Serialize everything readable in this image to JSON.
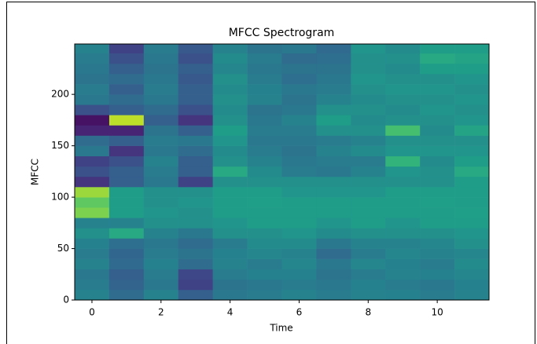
{
  "chart_data": {
    "type": "heatmap",
    "title": "MFCC Spectrogram",
    "x_label": "Time",
    "y_label": "MFCC",
    "colormap": "viridis",
    "x": [
      0,
      1,
      2,
      3,
      4,
      5,
      6,
      7,
      8,
      9,
      10,
      11
    ],
    "ybins": [
      0,
      10,
      20,
      30,
      40,
      50,
      60,
      70,
      80,
      90,
      100,
      110,
      120,
      130,
      140,
      150,
      160,
      170,
      180,
      190,
      200,
      210,
      220,
      230,
      240,
      249
    ],
    "values": [
      [
        0.45,
        0.42,
        0.4,
        0.45,
        0.42,
        0.44,
        0.5,
        0.45,
        0.8,
        0.75,
        0.85,
        0.15,
        0.25,
        0.2,
        0.4,
        0.35,
        0.1,
        0.05,
        0.25,
        0.4,
        0.42,
        0.38,
        0.4,
        0.42,
        0.45
      ],
      [
        0.35,
        0.32,
        0.3,
        0.34,
        0.33,
        0.36,
        0.6,
        0.45,
        0.55,
        0.55,
        0.55,
        0.3,
        0.3,
        0.25,
        0.15,
        0.3,
        0.1,
        0.9,
        0.3,
        0.35,
        0.3,
        0.35,
        0.3,
        0.25,
        0.2
      ],
      [
        0.45,
        0.4,
        0.42,
        0.44,
        0.42,
        0.4,
        0.45,
        0.5,
        0.52,
        0.5,
        0.5,
        0.4,
        0.42,
        0.45,
        0.4,
        0.42,
        0.38,
        0.3,
        0.35,
        0.4,
        0.42,
        0.4,
        0.38,
        0.4,
        0.42
      ],
      [
        0.3,
        0.2,
        0.22,
        0.35,
        0.38,
        0.35,
        0.4,
        0.5,
        0.5,
        0.52,
        0.5,
        0.2,
        0.3,
        0.3,
        0.35,
        0.4,
        0.3,
        0.15,
        0.25,
        0.3,
        0.3,
        0.28,
        0.3,
        0.25,
        0.28
      ],
      [
        0.4,
        0.38,
        0.42,
        0.45,
        0.44,
        0.42,
        0.5,
        0.52,
        0.55,
        0.55,
        0.55,
        0.5,
        0.6,
        0.5,
        0.48,
        0.52,
        0.55,
        0.5,
        0.48,
        0.5,
        0.48,
        0.5,
        0.46,
        0.48,
        0.45
      ],
      [
        0.42,
        0.4,
        0.44,
        0.42,
        0.46,
        0.48,
        0.5,
        0.55,
        0.55,
        0.56,
        0.55,
        0.5,
        0.48,
        0.45,
        0.42,
        0.4,
        0.42,
        0.4,
        0.38,
        0.45,
        0.44,
        0.42,
        0.4,
        0.42,
        0.38
      ],
      [
        0.45,
        0.42,
        0.44,
        0.46,
        0.45,
        0.48,
        0.52,
        0.55,
        0.55,
        0.55,
        0.52,
        0.5,
        0.42,
        0.4,
        0.38,
        0.4,
        0.42,
        0.45,
        0.4,
        0.38,
        0.4,
        0.36,
        0.38,
        0.35,
        0.4
      ],
      [
        0.42,
        0.4,
        0.38,
        0.4,
        0.35,
        0.4,
        0.48,
        0.52,
        0.55,
        0.55,
        0.52,
        0.5,
        0.4,
        0.42,
        0.45,
        0.42,
        0.5,
        0.55,
        0.5,
        0.45,
        0.42,
        0.4,
        0.38,
        0.36,
        0.34
      ],
      [
        0.45,
        0.44,
        0.42,
        0.46,
        0.42,
        0.45,
        0.5,
        0.55,
        0.55,
        0.55,
        0.52,
        0.5,
        0.45,
        0.42,
        0.48,
        0.45,
        0.5,
        0.48,
        0.5,
        0.48,
        0.5,
        0.52,
        0.5,
        0.5,
        0.52
      ],
      [
        0.44,
        0.42,
        0.45,
        0.44,
        0.46,
        0.45,
        0.5,
        0.52,
        0.55,
        0.55,
        0.55,
        0.5,
        0.52,
        0.65,
        0.52,
        0.5,
        0.7,
        0.5,
        0.48,
        0.5,
        0.52,
        0.5,
        0.48,
        0.5,
        0.48
      ],
      [
        0.42,
        0.4,
        0.44,
        0.42,
        0.45,
        0.46,
        0.5,
        0.55,
        0.55,
        0.56,
        0.55,
        0.5,
        0.5,
        0.48,
        0.52,
        0.5,
        0.48,
        0.5,
        0.52,
        0.5,
        0.52,
        0.5,
        0.55,
        0.6,
        0.55
      ],
      [
        0.45,
        0.44,
        0.46,
        0.48,
        0.46,
        0.5,
        0.52,
        0.55,
        0.56,
        0.55,
        0.55,
        0.55,
        0.6,
        0.55,
        0.52,
        0.5,
        0.58,
        0.52,
        0.5,
        0.52,
        0.5,
        0.52,
        0.55,
        0.58,
        0.55
      ]
    ],
    "xlim": [
      -0.5,
      11.5
    ],
    "ylim": [
      0,
      249
    ],
    "xticks": [
      0,
      2,
      4,
      6,
      8,
      10
    ],
    "yticks": [
      0,
      50,
      100,
      150,
      200
    ]
  }
}
